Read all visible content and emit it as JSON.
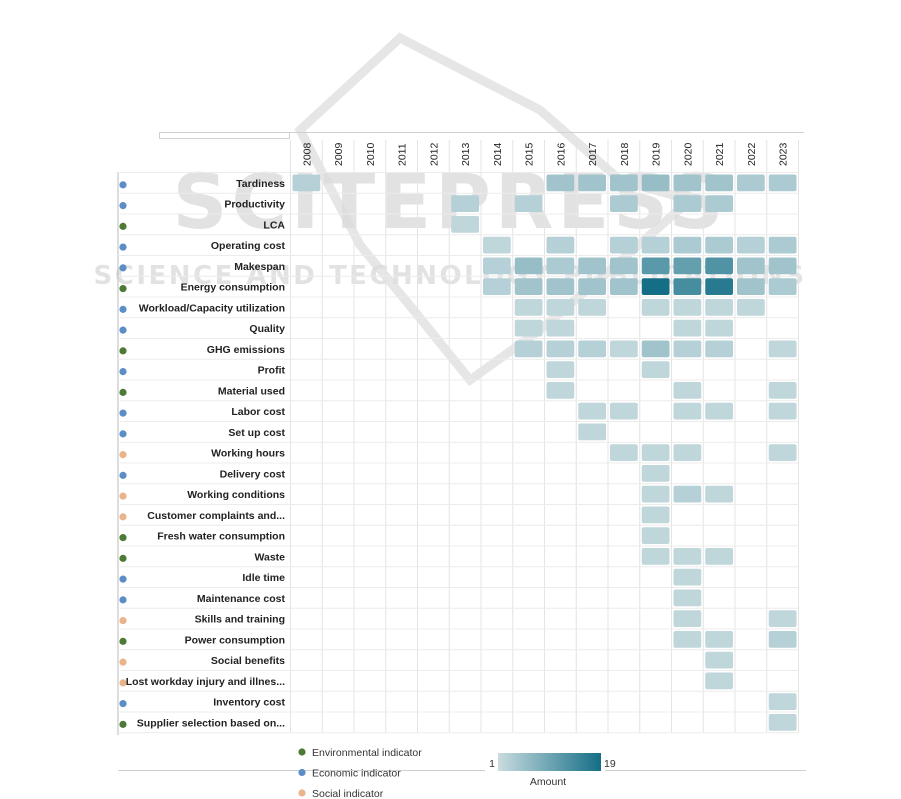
{
  "watermark": {
    "big": "SCITEPRESS",
    "small": "SCIENCE AND TECHNOLOGY PUBLICATIONS"
  },
  "colors": {
    "environmental": "#4d7a34",
    "economic": "#5b8ec7",
    "social": "#ebb38a",
    "scale_low": "#c9dce0",
    "scale_high": "#146e86"
  },
  "chart_data": {
    "type": "heatmap",
    "years": [
      "2008",
      "2009",
      "2010",
      "2011",
      "2012",
      "2013",
      "2014",
      "2015",
      "2016",
      "2017",
      "2018",
      "2019",
      "2020",
      "2021",
      "2022",
      "2023"
    ],
    "rows": [
      {
        "label": "Tardiness",
        "category": "economic",
        "values": {
          "2008": 3,
          "2016": 5,
          "2017": 5,
          "2018": 5,
          "2019": 6,
          "2020": 5,
          "2021": 5,
          "2022": 4,
          "2023": 4
        }
      },
      {
        "label": "Productivity",
        "category": "economic",
        "values": {
          "2013": 3,
          "2015": 3,
          "2018": 4,
          "2020": 4,
          "2021": 4
        }
      },
      {
        "label": "LCA",
        "category": "environmental",
        "values": {
          "2013": 2
        }
      },
      {
        "label": "Operating cost",
        "category": "economic",
        "values": {
          "2014": 2,
          "2016": 3,
          "2018": 3,
          "2019": 3,
          "2020": 4,
          "2021": 4,
          "2022": 3,
          "2023": 4
        }
      },
      {
        "label": "Makespan",
        "category": "economic",
        "values": {
          "2014": 3,
          "2015": 6,
          "2016": 4,
          "2017": 5,
          "2018": 5,
          "2019": 12,
          "2020": 11,
          "2021": 13,
          "2022": 5,
          "2023": 5
        }
      },
      {
        "label": "Energy consumption",
        "category": "environmental",
        "values": {
          "2014": 3,
          "2015": 5,
          "2016": 5,
          "2017": 5,
          "2018": 5,
          "2019": 19,
          "2020": 14,
          "2021": 17,
          "2022": 5,
          "2023": 4
        }
      },
      {
        "label": "Workload/Capacity utilization",
        "category": "economic",
        "values": {
          "2015": 2,
          "2016": 2,
          "2017": 2,
          "2019": 2,
          "2020": 2,
          "2021": 2,
          "2022": 2
        }
      },
      {
        "label": "Quality",
        "category": "economic",
        "values": {
          "2015": 2,
          "2016": 2,
          "2020": 2,
          "2021": 2
        }
      },
      {
        "label": "GHG emissions",
        "category": "environmental",
        "values": {
          "2015": 3,
          "2016": 3,
          "2017": 3,
          "2018": 2,
          "2019": 5,
          "2020": 3,
          "2021": 3,
          "2023": 2
        }
      },
      {
        "label": "Profit",
        "category": "economic",
        "values": {
          "2016": 2,
          "2019": 2
        }
      },
      {
        "label": "Material used",
        "category": "environmental",
        "values": {
          "2016": 2,
          "2020": 2,
          "2023": 2
        }
      },
      {
        "label": "Labor cost",
        "category": "economic",
        "values": {
          "2017": 2,
          "2018": 2,
          "2020": 2,
          "2021": 2,
          "2023": 2
        }
      },
      {
        "label": "Set up cost",
        "category": "economic",
        "values": {
          "2017": 2
        }
      },
      {
        "label": "Working hours",
        "category": "social",
        "values": {
          "2018": 2,
          "2019": 2,
          "2020": 2,
          "2023": 2
        }
      },
      {
        "label": "Delivery cost",
        "category": "economic",
        "values": {
          "2019": 2
        }
      },
      {
        "label": "Working conditions",
        "category": "social",
        "values": {
          "2019": 2,
          "2020": 3,
          "2021": 2
        }
      },
      {
        "label": "Customer complaints and...",
        "category": "social",
        "values": {
          "2019": 2
        }
      },
      {
        "label": "Fresh water consumption",
        "category": "environmental",
        "values": {
          "2019": 2
        }
      },
      {
        "label": "Waste",
        "category": "environmental",
        "values": {
          "2019": 2,
          "2020": 2,
          "2021": 2
        }
      },
      {
        "label": "Idle time",
        "category": "economic",
        "values": {
          "2020": 2
        }
      },
      {
        "label": "Maintenance cost",
        "category": "economic",
        "values": {
          "2020": 2
        }
      },
      {
        "label": "Skills and training",
        "category": "social",
        "values": {
          "2020": 2,
          "2023": 2
        }
      },
      {
        "label": "Power consumption",
        "category": "environmental",
        "values": {
          "2020": 2,
          "2021": 2,
          "2023": 3
        }
      },
      {
        "label": "Social benefits",
        "category": "social",
        "values": {
          "2021": 2
        }
      },
      {
        "label": "Lost workday injury and illnes...",
        "category": "social",
        "values": {
          "2021": 2
        }
      },
      {
        "label": "Inventory cost",
        "category": "economic",
        "values": {
          "2023": 2
        }
      },
      {
        "label": "Supplier selection based on...",
        "category": "environmental",
        "values": {
          "2023": 2
        }
      }
    ],
    "legend": [
      {
        "key": "environmental",
        "label": "Environmental indicator"
      },
      {
        "key": "economic",
        "label": "Economic indicator"
      },
      {
        "key": "social",
        "label": "Social indicator"
      }
    ],
    "color_scale": {
      "min": 1,
      "max": 19,
      "min_label": "1",
      "max_label": "19",
      "title": "Amount"
    }
  }
}
